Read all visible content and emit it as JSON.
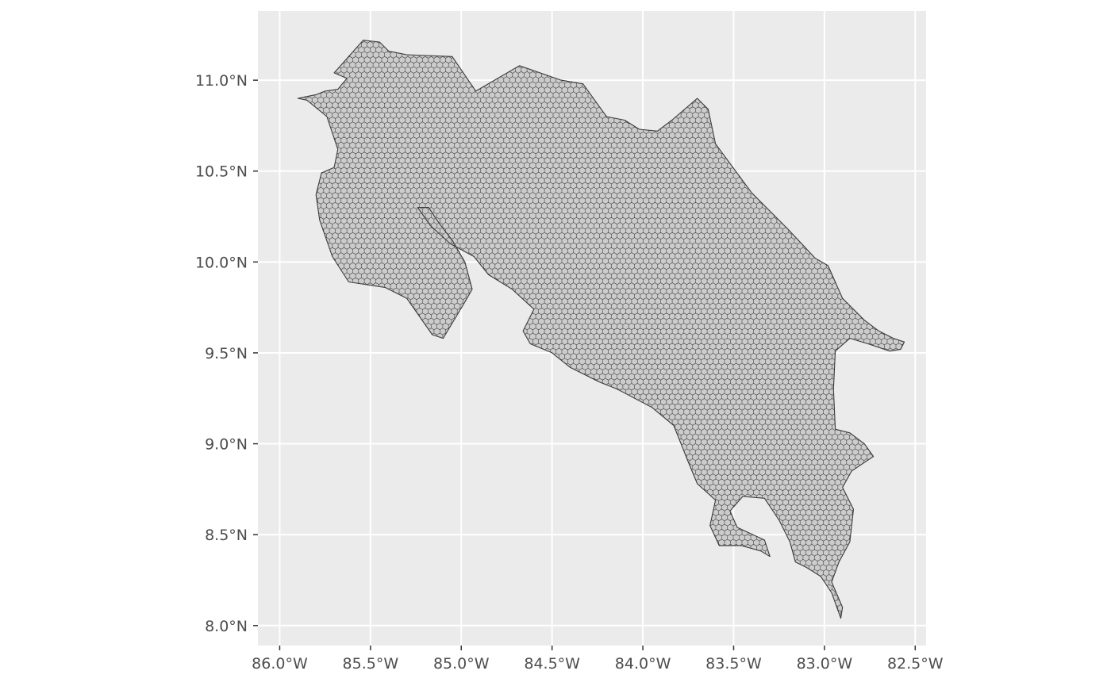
{
  "chart_data": {
    "type": "map",
    "projection": "geographic (longitude/latitude)",
    "grid": true,
    "panel_background": "#ebebeb",
    "gridline_color": "#ffffff",
    "fill_color": "#cccccc",
    "hex_outline_color": "#3a3a3a",
    "xlim": [
      -86.12,
      -82.44
    ],
    "ylim": [
      7.89,
      11.38
    ],
    "x_ticks": [
      {
        "value": -86.0,
        "label": "86.0°W"
      },
      {
        "value": -85.5,
        "label": "85.5°W"
      },
      {
        "value": -85.0,
        "label": "85.0°W"
      },
      {
        "value": -84.5,
        "label": "84.5°W"
      },
      {
        "value": -84.0,
        "label": "84.0°W"
      },
      {
        "value": -83.5,
        "label": "83.5°W"
      },
      {
        "value": -83.0,
        "label": "83.0°W"
      },
      {
        "value": -82.5,
        "label": "82.5°W"
      }
    ],
    "y_ticks": [
      {
        "value": 11.0,
        "label": "11.0°N"
      },
      {
        "value": 10.5,
        "label": "10.5°N"
      },
      {
        "value": 10.0,
        "label": "10.0°N"
      },
      {
        "value": 9.5,
        "label": "9.5°N"
      },
      {
        "value": 9.0,
        "label": "9.0°N"
      },
      {
        "value": 8.5,
        "label": "8.5°N"
      },
      {
        "value": 8.0,
        "label": "8.0°N"
      }
    ],
    "hex_grid_spacing_deg": 0.032,
    "country_outline": [
      [
        -85.8,
        10.92
      ],
      [
        -85.75,
        10.94
      ],
      [
        -85.68,
        10.95
      ],
      [
        -85.63,
        11.01
      ],
      [
        -85.7,
        11.04
      ],
      [
        -85.62,
        11.13
      ],
      [
        -85.54,
        11.22
      ],
      [
        -85.45,
        11.21
      ],
      [
        -85.4,
        11.16
      ],
      [
        -85.3,
        11.14
      ],
      [
        -85.05,
        11.13
      ],
      [
        -84.92,
        10.94
      ],
      [
        -84.68,
        11.08
      ],
      [
        -84.45,
        11.0
      ],
      [
        -84.33,
        10.98
      ],
      [
        -84.2,
        10.8
      ],
      [
        -84.1,
        10.78
      ],
      [
        -84.02,
        10.73
      ],
      [
        -83.92,
        10.72
      ],
      [
        -83.84,
        10.78
      ],
      [
        -83.7,
        10.9
      ],
      [
        -83.64,
        10.84
      ],
      [
        -83.6,
        10.65
      ],
      [
        -83.4,
        10.38
      ],
      [
        -83.2,
        10.18
      ],
      [
        -83.05,
        10.02
      ],
      [
        -82.98,
        9.98
      ],
      [
        -82.9,
        9.8
      ],
      [
        -82.78,
        9.68
      ],
      [
        -82.7,
        9.62
      ],
      [
        -82.62,
        9.58
      ],
      [
        -82.56,
        9.56
      ],
      [
        -82.58,
        9.52
      ],
      [
        -82.64,
        9.51
      ],
      [
        -82.76,
        9.55
      ],
      [
        -82.86,
        9.58
      ],
      [
        -82.94,
        9.51
      ],
      [
        -82.95,
        9.3
      ],
      [
        -82.94,
        9.08
      ],
      [
        -82.86,
        9.06
      ],
      [
        -82.78,
        9.0
      ],
      [
        -82.73,
        8.93
      ],
      [
        -82.85,
        8.85
      ],
      [
        -82.9,
        8.76
      ],
      [
        -82.84,
        8.64
      ],
      [
        -82.86,
        8.46
      ],
      [
        -82.92,
        8.35
      ],
      [
        -82.96,
        8.24
      ],
      [
        -82.9,
        8.1
      ],
      [
        -82.91,
        8.04
      ],
      [
        -82.96,
        8.18
      ],
      [
        -83.02,
        8.27
      ],
      [
        -83.1,
        8.32
      ],
      [
        -83.16,
        8.35
      ],
      [
        -83.19,
        8.46
      ],
      [
        -83.25,
        8.58
      ],
      [
        -83.33,
        8.7
      ],
      [
        -83.45,
        8.71
      ],
      [
        -83.52,
        8.63
      ],
      [
        -83.48,
        8.54
      ],
      [
        -83.33,
        8.47
      ],
      [
        -83.3,
        8.38
      ],
      [
        -83.35,
        8.41
      ],
      [
        -83.46,
        8.44
      ],
      [
        -83.58,
        8.44
      ],
      [
        -83.63,
        8.55
      ],
      [
        -83.6,
        8.69
      ],
      [
        -83.7,
        8.78
      ],
      [
        -83.75,
        8.9
      ],
      [
        -83.83,
        9.1
      ],
      [
        -83.95,
        9.2
      ],
      [
        -84.14,
        9.3
      ],
      [
        -84.24,
        9.34
      ],
      [
        -84.4,
        9.42
      ],
      [
        -84.5,
        9.5
      ],
      [
        -84.62,
        9.55
      ],
      [
        -84.66,
        9.62
      ],
      [
        -84.6,
        9.74
      ],
      [
        -84.72,
        9.85
      ],
      [
        -84.85,
        9.93
      ],
      [
        -84.93,
        10.03
      ],
      [
        -85.06,
        10.1
      ],
      [
        -85.17,
        10.2
      ],
      [
        -85.24,
        10.3
      ],
      [
        -85.18,
        10.3
      ],
      [
        -85.12,
        10.21
      ],
      [
        -85.05,
        10.12
      ],
      [
        -84.98,
        10.0
      ],
      [
        -84.94,
        9.85
      ],
      [
        -84.98,
        9.78
      ],
      [
        -85.1,
        9.58
      ],
      [
        -85.16,
        9.6
      ],
      [
        -85.3,
        9.8
      ],
      [
        -85.42,
        9.86
      ],
      [
        -85.62,
        9.89
      ],
      [
        -85.71,
        10.03
      ],
      [
        -85.78,
        10.23
      ],
      [
        -85.8,
        10.37
      ],
      [
        -85.77,
        10.49
      ],
      [
        -85.7,
        10.52
      ],
      [
        -85.68,
        10.62
      ],
      [
        -85.74,
        10.8
      ],
      [
        -85.85,
        10.89
      ],
      [
        -85.9,
        10.9
      ]
    ]
  }
}
